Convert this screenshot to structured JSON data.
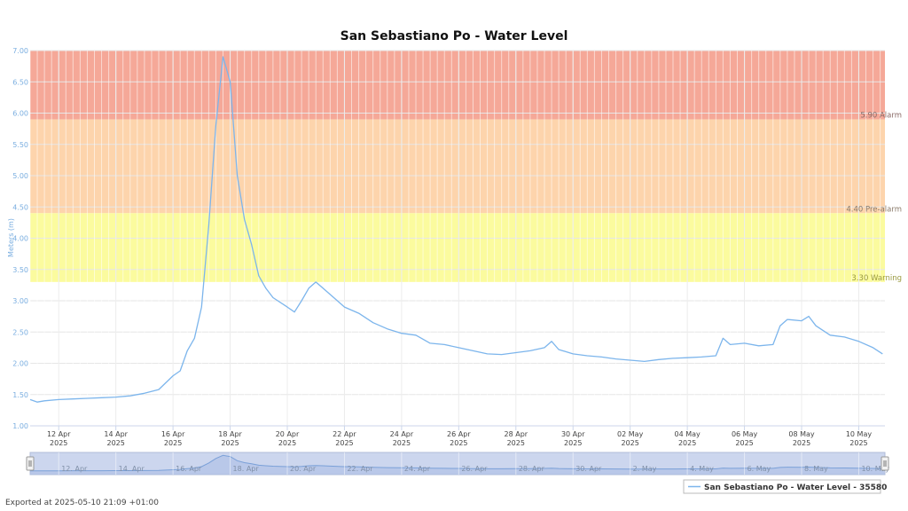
{
  "chart_data": {
    "type": "line",
    "title": "San Sebastiano Po - Water Level",
    "ylabel": "Meters (m)",
    "ylim": [
      1.0,
      7.0
    ],
    "y_ticks": [
      "1.00",
      "1.50",
      "2.00",
      "2.50",
      "3.00",
      "3.50",
      "4.00",
      "4.50",
      "5.00",
      "5.50",
      "6.00",
      "6.50",
      "7.00"
    ],
    "x_range": [
      "2025-04-11",
      "2025-05-10T22:00"
    ],
    "x_ticks": [
      {
        "date": "2025-04-12",
        "label": "12 Apr",
        "year": "2025"
      },
      {
        "date": "2025-04-14",
        "label": "14 Apr",
        "year": "2025"
      },
      {
        "date": "2025-04-16",
        "label": "16 Apr",
        "year": "2025"
      },
      {
        "date": "2025-04-18",
        "label": "18 Apr",
        "year": "2025"
      },
      {
        "date": "2025-04-20",
        "label": "20 Apr",
        "year": "2025"
      },
      {
        "date": "2025-04-22",
        "label": "22 Apr",
        "year": "2025"
      },
      {
        "date": "2025-04-24",
        "label": "24 Apr",
        "year": "2025"
      },
      {
        "date": "2025-04-26",
        "label": "26 Apr",
        "year": "2025"
      },
      {
        "date": "2025-04-28",
        "label": "28 Apr",
        "year": "2025"
      },
      {
        "date": "2025-04-30",
        "label": "30 Apr",
        "year": "2025"
      },
      {
        "date": "2025-05-02",
        "label": "02 May",
        "year": "2025"
      },
      {
        "date": "2025-05-04",
        "label": "04 May",
        "year": "2025"
      },
      {
        "date": "2025-05-06",
        "label": "06 May",
        "year": "2025"
      },
      {
        "date": "2025-05-08",
        "label": "08 May",
        "year": "2025"
      },
      {
        "date": "2025-05-10",
        "label": "10 May",
        "year": "2025"
      }
    ],
    "thresholds": [
      {
        "value": 5.9,
        "label": "5.90 Alarm",
        "color": "#f5a898",
        "label_color": "#8a6a66"
      },
      {
        "value": 4.4,
        "label": "4.40 Pre-alarm",
        "color": "#fdd4ac",
        "label_color": "#8a7a6a"
      },
      {
        "value": 3.3,
        "label": "3.30 Warning",
        "color": "#fbfb9e",
        "label_color": "#9a9a40"
      }
    ],
    "series": [
      {
        "name": "San Sebastiano Po - Water Level - 35580",
        "color": "#7cb5ec",
        "points": [
          [
            "2025-04-11T00:00",
            1.42
          ],
          [
            "2025-04-11T06:00",
            1.38
          ],
          [
            "2025-04-11T12:00",
            1.4
          ],
          [
            "2025-04-12T00:00",
            1.42
          ],
          [
            "2025-04-12T12:00",
            1.43
          ],
          [
            "2025-04-13T00:00",
            1.44
          ],
          [
            "2025-04-13T12:00",
            1.45
          ],
          [
            "2025-04-14T00:00",
            1.46
          ],
          [
            "2025-04-14T12:00",
            1.48
          ],
          [
            "2025-04-15T00:00",
            1.52
          ],
          [
            "2025-04-15T12:00",
            1.58
          ],
          [
            "2025-04-16T00:00",
            1.8
          ],
          [
            "2025-04-16T06:00",
            1.88
          ],
          [
            "2025-04-16T12:00",
            2.2
          ],
          [
            "2025-04-16T18:00",
            2.4
          ],
          [
            "2025-04-17T00:00",
            2.9
          ],
          [
            "2025-04-17T06:00",
            4.2
          ],
          [
            "2025-04-17T12:00",
            5.8
          ],
          [
            "2025-04-17T18:00",
            6.9
          ],
          [
            "2025-04-18T00:00",
            6.5
          ],
          [
            "2025-04-18T06:00",
            5.0
          ],
          [
            "2025-04-18T12:00",
            4.3
          ],
          [
            "2025-04-18T18:00",
            3.9
          ],
          [
            "2025-04-19T00:00",
            3.4
          ],
          [
            "2025-04-19T06:00",
            3.2
          ],
          [
            "2025-04-19T12:00",
            3.05
          ],
          [
            "2025-04-20T00:00",
            2.9
          ],
          [
            "2025-04-20T06:00",
            2.82
          ],
          [
            "2025-04-20T12:00",
            3.0
          ],
          [
            "2025-04-20T18:00",
            3.2
          ],
          [
            "2025-04-21T00:00",
            3.3
          ],
          [
            "2025-04-21T06:00",
            3.2
          ],
          [
            "2025-04-21T12:00",
            3.1
          ],
          [
            "2025-04-22T00:00",
            2.9
          ],
          [
            "2025-04-22T12:00",
            2.8
          ],
          [
            "2025-04-23T00:00",
            2.65
          ],
          [
            "2025-04-23T12:00",
            2.55
          ],
          [
            "2025-04-24T00:00",
            2.48
          ],
          [
            "2025-04-24T12:00",
            2.45
          ],
          [
            "2025-04-25T00:00",
            2.32
          ],
          [
            "2025-04-25T12:00",
            2.3
          ],
          [
            "2025-04-26T00:00",
            2.25
          ],
          [
            "2025-04-26T12:00",
            2.2
          ],
          [
            "2025-04-27T00:00",
            2.15
          ],
          [
            "2025-04-27T12:00",
            2.14
          ],
          [
            "2025-04-28T00:00",
            2.17
          ],
          [
            "2025-04-28T12:00",
            2.2
          ],
          [
            "2025-04-29T00:00",
            2.25
          ],
          [
            "2025-04-29T06:00",
            2.35
          ],
          [
            "2025-04-29T12:00",
            2.22
          ],
          [
            "2025-04-30T00:00",
            2.15
          ],
          [
            "2025-04-30T12:00",
            2.12
          ],
          [
            "2025-05-01T00:00",
            2.1
          ],
          [
            "2025-05-01T12:00",
            2.07
          ],
          [
            "2025-05-02T00:00",
            2.05
          ],
          [
            "2025-05-02T12:00",
            2.03
          ],
          [
            "2025-05-03T00:00",
            2.06
          ],
          [
            "2025-05-03T12:00",
            2.08
          ],
          [
            "2025-05-04T00:00",
            2.09
          ],
          [
            "2025-05-04T12:00",
            2.1
          ],
          [
            "2025-05-05T00:00",
            2.12
          ],
          [
            "2025-05-05T06:00",
            2.4
          ],
          [
            "2025-05-05T12:00",
            2.3
          ],
          [
            "2025-05-06T00:00",
            2.32
          ],
          [
            "2025-05-06T12:00",
            2.28
          ],
          [
            "2025-05-07T00:00",
            2.3
          ],
          [
            "2025-05-07T06:00",
            2.6
          ],
          [
            "2025-05-07T12:00",
            2.7
          ],
          [
            "2025-05-08T00:00",
            2.68
          ],
          [
            "2025-05-08T06:00",
            2.75
          ],
          [
            "2025-05-08T12:00",
            2.6
          ],
          [
            "2025-05-09T00:00",
            2.45
          ],
          [
            "2025-05-09T12:00",
            2.42
          ],
          [
            "2025-05-10T00:00",
            2.35
          ],
          [
            "2025-05-10T12:00",
            2.25
          ],
          [
            "2025-05-10T20:00",
            2.15
          ]
        ]
      }
    ],
    "navigator_ticks": [
      "12. Apr",
      "14. Apr",
      "16. Apr",
      "18. Apr",
      "20. Apr",
      "22. Apr",
      "24. Apr",
      "26. Apr",
      "28. Apr",
      "30. Apr",
      "2. May",
      "4. May",
      "6. May",
      "8. May",
      "10. May"
    ],
    "legend": {
      "position": "bottom-right"
    },
    "grid": true
  },
  "footer": {
    "exported": "Exported at 2025-05-10 21:09 +01:00"
  }
}
